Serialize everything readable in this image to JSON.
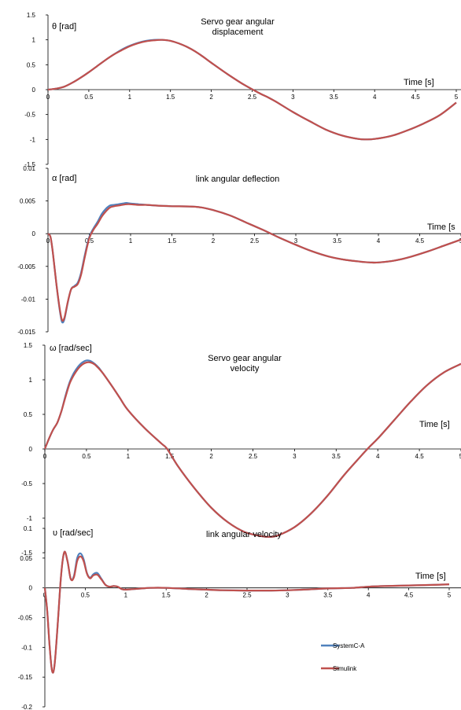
{
  "chart_data": [
    {
      "type": "line",
      "title": "Servo gear angular displacement",
      "title_lines": [
        "Servo gear angular",
        "displacement"
      ],
      "ylabel": "θ [rad]",
      "xlabel": "Time [s]",
      "xlim": [
        0,
        5
      ],
      "ylim": [
        -1.5,
        1.5
      ],
      "xticks": [
        "0",
        "0.5",
        "1",
        "1.5",
        "2",
        "2.5",
        "3",
        "3.5",
        "4",
        "4.5",
        "5"
      ],
      "yticks": [
        "1.5",
        "1",
        "0.5",
        "0",
        "-0.5",
        "-1",
        "-1.5"
      ],
      "series": [
        {
          "name": "SystemC-A",
          "color": "#4f81bd",
          "x": [
            0,
            0.1,
            0.2,
            0.3,
            0.4,
            0.5,
            0.6,
            0.7,
            0.8,
            0.9,
            1.0,
            1.1,
            1.2,
            1.3,
            1.4,
            1.5,
            1.6,
            1.7,
            1.8,
            1.9,
            2.0,
            2.2,
            2.4,
            2.6,
            2.7,
            2.8,
            3.0,
            3.2,
            3.4,
            3.6,
            3.8,
            3.9,
            4.0,
            4.2,
            4.4,
            4.6,
            4.8,
            5.0
          ],
          "y": [
            0,
            0.02,
            0.06,
            0.14,
            0.24,
            0.35,
            0.47,
            0.59,
            0.7,
            0.8,
            0.88,
            0.94,
            0.98,
            1.0,
            1.0,
            0.98,
            0.93,
            0.86,
            0.77,
            0.66,
            0.54,
            0.31,
            0.1,
            -0.08,
            -0.16,
            -0.25,
            -0.45,
            -0.63,
            -0.8,
            -0.92,
            -0.99,
            -1.0,
            -0.99,
            -0.93,
            -0.82,
            -0.68,
            -0.51,
            -0.26
          ]
        },
        {
          "name": "Simulink",
          "color": "#c0504d",
          "x": [
            0,
            0.1,
            0.2,
            0.3,
            0.4,
            0.5,
            0.6,
            0.7,
            0.8,
            0.9,
            1.0,
            1.1,
            1.2,
            1.3,
            1.4,
            1.5,
            1.6,
            1.7,
            1.8,
            1.9,
            2.0,
            2.2,
            2.4,
            2.6,
            2.7,
            2.8,
            3.0,
            3.2,
            3.4,
            3.6,
            3.8,
            3.9,
            4.0,
            4.2,
            4.4,
            4.6,
            4.8,
            5.0
          ],
          "y": [
            0,
            0.02,
            0.06,
            0.14,
            0.24,
            0.35,
            0.47,
            0.59,
            0.7,
            0.79,
            0.87,
            0.93,
            0.97,
            0.99,
            1.0,
            0.98,
            0.93,
            0.86,
            0.77,
            0.66,
            0.54,
            0.31,
            0.1,
            -0.08,
            -0.16,
            -0.25,
            -0.45,
            -0.63,
            -0.8,
            -0.92,
            -0.99,
            -1.0,
            -0.99,
            -0.93,
            -0.82,
            -0.68,
            -0.51,
            -0.26
          ]
        }
      ]
    },
    {
      "type": "line",
      "title": "link angular deflection",
      "title_lines": [
        "link angular deflection"
      ],
      "ylabel": "α [rad]",
      "xlabel": "Time [s",
      "xlim": [
        0,
        5
      ],
      "ylim": [
        -0.015,
        0.01
      ],
      "xticks": [
        "0",
        "0.5",
        "1",
        "1.5",
        "2",
        "2.5",
        "3",
        "3.5",
        "4",
        "4.5",
        "5"
      ],
      "yticks": [
        "0.01",
        "0.005",
        "0",
        "-0.005",
        "-0.01",
        "-0.015"
      ],
      "series": [
        {
          "name": "SystemC-A",
          "color": "#4f81bd",
          "x": [
            0,
            0.03,
            0.06,
            0.1,
            0.14,
            0.17,
            0.2,
            0.24,
            0.28,
            0.32,
            0.36,
            0.4,
            0.45,
            0.5,
            0.55,
            0.6,
            0.65,
            0.7,
            0.75,
            0.8,
            0.85,
            0.9,
            0.95,
            1.0,
            1.1,
            1.2,
            1.3,
            1.5,
            1.8,
            2.0,
            2.2,
            2.4,
            2.6,
            2.7,
            2.8,
            3.0,
            3.2,
            3.4,
            3.6,
            3.8,
            3.9,
            4.0,
            4.2,
            4.4,
            4.6,
            4.8,
            5.0
          ],
          "y": [
            0,
            -0.0005,
            -0.003,
            -0.0075,
            -0.0115,
            -0.0135,
            -0.013,
            -0.0105,
            -0.0085,
            -0.008,
            -0.0075,
            -0.006,
            -0.003,
            -0.0005,
            0.0008,
            0.0018,
            0.003,
            0.0038,
            0.0043,
            0.0044,
            0.0045,
            0.0046,
            0.0047,
            0.0046,
            0.0045,
            0.0044,
            0.0043,
            0.0042,
            0.0041,
            0.0036,
            0.0028,
            0.0017,
            0.0006,
            0,
            -0.0006,
            -0.0017,
            -0.0027,
            -0.0035,
            -0.004,
            -0.0043,
            -0.0044,
            -0.0044,
            -0.0041,
            -0.0035,
            -0.0027,
            -0.0018,
            -0.0009
          ]
        },
        {
          "name": "Simulink",
          "color": "#c0504d",
          "x": [
            0,
            0.03,
            0.06,
            0.1,
            0.14,
            0.17,
            0.2,
            0.24,
            0.28,
            0.32,
            0.36,
            0.4,
            0.45,
            0.5,
            0.55,
            0.6,
            0.65,
            0.7,
            0.75,
            0.8,
            0.85,
            0.9,
            0.95,
            1.0,
            1.1,
            1.2,
            1.3,
            1.5,
            1.8,
            2.0,
            2.2,
            2.4,
            2.6,
            2.7,
            2.8,
            3.0,
            3.2,
            3.4,
            3.6,
            3.8,
            3.9,
            4.0,
            4.2,
            4.4,
            4.6,
            4.8,
            5.0
          ],
          "y": [
            0,
            -0.0005,
            -0.003,
            -0.0075,
            -0.0113,
            -0.0132,
            -0.0128,
            -0.0104,
            -0.0085,
            -0.0081,
            -0.0077,
            -0.0063,
            -0.0033,
            -0.0007,
            0.0006,
            0.0015,
            0.0026,
            0.0034,
            0.004,
            0.0042,
            0.0043,
            0.0044,
            0.0045,
            0.0045,
            0.0044,
            0.0044,
            0.0043,
            0.0042,
            0.0041,
            0.0036,
            0.0028,
            0.0017,
            0.0006,
            0,
            -0.0006,
            -0.0017,
            -0.0027,
            -0.0035,
            -0.004,
            -0.0043,
            -0.0044,
            -0.0044,
            -0.0041,
            -0.0035,
            -0.0027,
            -0.0018,
            -0.0009
          ]
        }
      ]
    },
    {
      "type": "line",
      "title": "Servo gear angular velocity",
      "title_lines": [
        "Servo gear angular",
        "velocity"
      ],
      "ylabel": "ω [rad/sec]",
      "xlabel": "Time [s]",
      "xlim": [
        0,
        5
      ],
      "ylim": [
        -1.5,
        1.5
      ],
      "xticks": [
        "0",
        "0.5",
        "1",
        "1.5",
        "2",
        "2.5",
        "3",
        "3.5",
        "4",
        "4.5",
        "5"
      ],
      "yticks": [
        "1.5",
        "1",
        "0.5",
        "0",
        "-0.5",
        "-1",
        "-1.5"
      ],
      "series": [
        {
          "name": "SystemC-A",
          "color": "#4f81bd",
          "x": [
            0,
            0.05,
            0.1,
            0.15,
            0.2,
            0.25,
            0.3,
            0.35,
            0.4,
            0.45,
            0.5,
            0.55,
            0.6,
            0.65,
            0.7,
            0.8,
            0.9,
            1.0,
            1.2,
            1.4,
            1.47,
            1.6,
            1.8,
            2.0,
            2.2,
            2.4,
            2.6,
            2.7,
            2.8,
            3.0,
            3.2,
            3.4,
            3.6,
            3.8,
            3.9,
            4.0,
            4.2,
            4.4,
            4.6,
            4.8,
            5.0
          ],
          "y": [
            0,
            0.15,
            0.28,
            0.38,
            0.55,
            0.78,
            0.97,
            1.1,
            1.19,
            1.25,
            1.28,
            1.27,
            1.23,
            1.17,
            1.09,
            0.92,
            0.74,
            0.56,
            0.3,
            0.08,
            0.0,
            -0.25,
            -0.57,
            -0.85,
            -1.06,
            -1.2,
            -1.26,
            -1.27,
            -1.25,
            -1.13,
            -0.93,
            -0.67,
            -0.37,
            -0.1,
            0.03,
            0.15,
            0.42,
            0.69,
            0.93,
            1.11,
            1.23
          ]
        },
        {
          "name": "Simulink",
          "color": "#c0504d",
          "x": [
            0,
            0.05,
            0.1,
            0.15,
            0.2,
            0.25,
            0.3,
            0.35,
            0.4,
            0.45,
            0.5,
            0.55,
            0.6,
            0.65,
            0.7,
            0.8,
            0.9,
            1.0,
            1.2,
            1.4,
            1.47,
            1.6,
            1.8,
            2.0,
            2.2,
            2.4,
            2.6,
            2.7,
            2.8,
            3.0,
            3.2,
            3.4,
            3.6,
            3.8,
            3.9,
            4.0,
            4.2,
            4.4,
            4.6,
            4.8,
            5.0
          ],
          "y": [
            0,
            0.15,
            0.28,
            0.38,
            0.55,
            0.76,
            0.95,
            1.07,
            1.16,
            1.22,
            1.25,
            1.25,
            1.22,
            1.16,
            1.09,
            0.92,
            0.74,
            0.56,
            0.3,
            0.08,
            0.0,
            -0.25,
            -0.57,
            -0.85,
            -1.06,
            -1.2,
            -1.26,
            -1.27,
            -1.25,
            -1.13,
            -0.93,
            -0.67,
            -0.37,
            -0.1,
            0.03,
            0.15,
            0.42,
            0.69,
            0.93,
            1.11,
            1.23
          ]
        }
      ]
    },
    {
      "type": "line",
      "title": "link angular velocity",
      "title_lines": [
        "link angular velocity"
      ],
      "ylabel": "υ [rad/sec]",
      "xlabel": "Time [s]",
      "xlim": [
        0,
        5
      ],
      "ylim": [
        -0.2,
        0.1
      ],
      "xticks": [
        "0",
        "0.5",
        "1",
        "1.5",
        "2",
        "2.5",
        "3",
        "3.5",
        "4",
        "4.5",
        "5"
      ],
      "yticks": [
        "0.1",
        "0.05",
        "0",
        "-0.05",
        "-0.1",
        "-0.15",
        "-0.2"
      ],
      "series": [
        {
          "name": "SystemC-A",
          "color": "#4f81bd",
          "x": [
            0,
            0.03,
            0.06,
            0.09,
            0.12,
            0.16,
            0.2,
            0.24,
            0.28,
            0.32,
            0.36,
            0.4,
            0.44,
            0.48,
            0.52,
            0.56,
            0.6,
            0.65,
            0.7,
            0.75,
            0.8,
            0.85,
            0.9,
            0.95,
            1.0,
            1.1,
            1.2,
            1.3,
            1.5,
            1.8,
            2.0,
            2.2,
            2.5,
            2.8,
            3.0,
            3.2,
            3.5,
            3.8,
            4.0,
            4.2,
            4.5,
            4.8,
            5.0
          ],
          "y": [
            0,
            -0.04,
            -0.1,
            -0.14,
            -0.13,
            -0.06,
            0.02,
            0.06,
            0.045,
            0.015,
            0.02,
            0.05,
            0.058,
            0.048,
            0.025,
            0.017,
            0.023,
            0.025,
            0.015,
            0.005,
            0.002,
            0.003,
            0.002,
            -0.002,
            -0.003,
            -0.002,
            -0.001,
            0.0,
            0.0,
            -0.002,
            -0.003,
            -0.004,
            -0.0045,
            -0.0045,
            -0.004,
            -0.003,
            -0.001,
            0.0,
            0.002,
            0.003,
            0.004,
            0.005,
            0.006
          ]
        },
        {
          "name": "Simulink",
          "color": "#c0504d",
          "x": [
            0,
            0.03,
            0.06,
            0.09,
            0.12,
            0.16,
            0.2,
            0.24,
            0.28,
            0.32,
            0.36,
            0.4,
            0.44,
            0.48,
            0.52,
            0.56,
            0.6,
            0.65,
            0.7,
            0.75,
            0.8,
            0.85,
            0.9,
            0.95,
            1.0,
            1.1,
            1.2,
            1.3,
            1.5,
            1.8,
            2.0,
            2.2,
            2.5,
            2.8,
            3.0,
            3.2,
            3.5,
            3.8,
            4.0,
            4.2,
            4.5,
            4.8,
            5.0
          ],
          "y": [
            0,
            -0.04,
            -0.1,
            -0.14,
            -0.13,
            -0.06,
            0.02,
            0.06,
            0.045,
            0.015,
            0.018,
            0.045,
            0.053,
            0.045,
            0.024,
            0.016,
            0.021,
            0.022,
            0.014,
            0.005,
            0.002,
            0.003,
            0.002,
            -0.002,
            -0.003,
            -0.002,
            -0.001,
            0.0,
            0.0,
            -0.002,
            -0.003,
            -0.004,
            -0.0045,
            -0.0045,
            -0.004,
            -0.003,
            -0.001,
            0.0,
            0.002,
            0.003,
            0.004,
            0.005,
            0.006
          ]
        }
      ],
      "legend": {
        "placement": "bottom-right",
        "entries": [
          "SystemC-A",
          "Simulink"
        ]
      }
    }
  ]
}
